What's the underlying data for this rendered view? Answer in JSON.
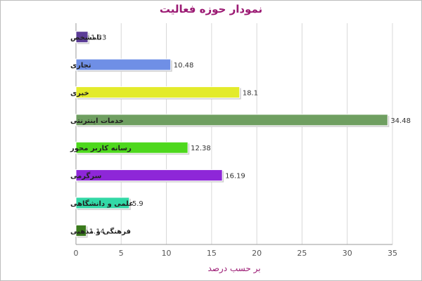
{
  "chart_data": {
    "type": "bar",
    "orientation": "horizontal",
    "title": "نمودار حوزه فعالیت",
    "xlabel": "بر حسب درصد",
    "ylabel": "",
    "xlim": [
      0,
      35
    ],
    "xticks": [
      0,
      5,
      10,
      15,
      20,
      25,
      30,
      35
    ],
    "grid": true,
    "legend": "none",
    "categories": [
      "نامشخص",
      "تجاری",
      "خبری",
      "خدمات اینترنتی",
      "رسانه کاربر محور",
      "سرگرمی",
      "علمی و دانشگاهی",
      "فرهنگی و مذهبی"
    ],
    "values": [
      1.33,
      10.48,
      18.1,
      34.48,
      12.38,
      16.19,
      5.9,
      1.14
    ],
    "value_labels": [
      "1.33",
      "10.48",
      "18.1",
      "34.48",
      "12.38",
      "16.19",
      "5.9",
      "1.14"
    ],
    "colors": [
      "#5b3c96",
      "#6f8fe6",
      "#e3eb2b",
      "#6f9f61",
      "#4ed81d",
      "#8e27d8",
      "#32d8a6",
      "#3a7a1c"
    ]
  }
}
